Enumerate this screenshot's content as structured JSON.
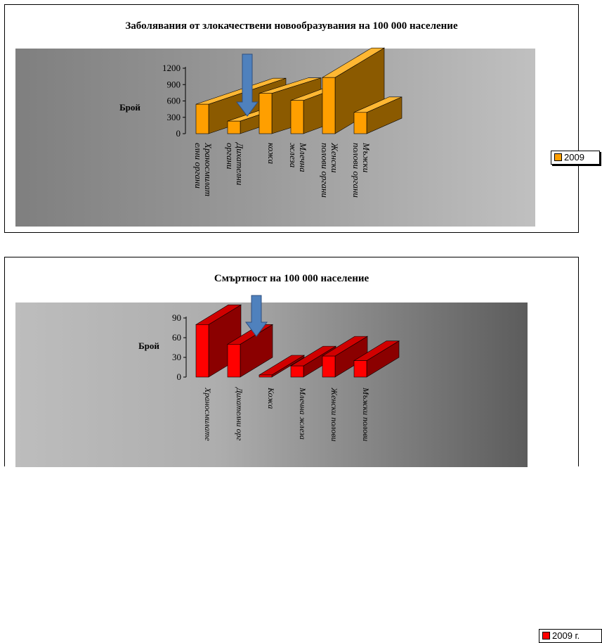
{
  "charts": [
    {
      "title": "Заболявания от злокачествени новообразувания на 100 000 население",
      "ylabel": "Брой",
      "legend": "2009",
      "bar_color": "#FF9F00",
      "bar_side": "#8B5A00",
      "bar_top": "#FFB733"
    },
    {
      "title": "Смъртност на 100 000 население",
      "ylabel": "Брой",
      "legend": "2009 г.",
      "bar_color": "#FF0000",
      "bar_side": "#8B0000",
      "bar_top": "#D00000"
    }
  ],
  "chart_data": [
    {
      "type": "bar",
      "title": "Заболявания от злокачествени новообразувания на 100 000 население",
      "ylabel": "Брой",
      "xlabel": "",
      "categories": [
        "Храносмилат елни органи",
        "Дихателни органи",
        "кожа",
        "Млечна жлеза",
        "Женски полови органи",
        "Мъжки полови органи"
      ],
      "series": [
        {
          "name": "2009",
          "values": [
            540,
            230,
            740,
            610,
            1030,
            390
          ]
        }
      ],
      "yticks": [
        0,
        300,
        600,
        900,
        1200
      ],
      "ylim": [
        0,
        1200
      ],
      "legend_position": "right",
      "three_d": true
    },
    {
      "type": "bar",
      "title": "Смъртност на 100 000 население",
      "ylabel": "Брой",
      "xlabel": "",
      "categories": [
        "Храносмилате",
        "Дихателни орг",
        "Кожа",
        "Млечна жлеза",
        "Женски полови",
        "Мъжки полови"
      ],
      "series": [
        {
          "name": "2009 г.",
          "values": [
            80,
            50,
            3,
            17,
            32,
            25
          ]
        }
      ],
      "yticks": [
        0,
        30,
        60,
        90
      ],
      "ylim": [
        0,
        90
      ],
      "legend_position": "right",
      "three_d": true
    }
  ]
}
